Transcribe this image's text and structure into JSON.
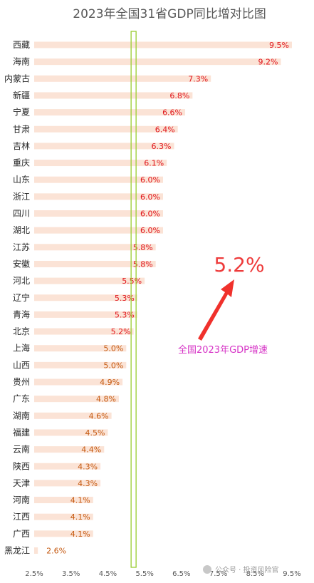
{
  "chart_data": {
    "type": "bar",
    "orientation": "horizontal",
    "title": "2023年全国31省GDP同比增对比图",
    "categories": [
      "西藏",
      "海南",
      "内蒙古",
      "新疆",
      "宁夏",
      "甘肃",
      "吉林",
      "重庆",
      "山东",
      "浙江",
      "四川",
      "湖北",
      "江苏",
      "安徽",
      "河北",
      "辽宁",
      "青海",
      "北京",
      "上海",
      "山西",
      "贵州",
      "广东",
      "湖南",
      "福建",
      "云南",
      "陕西",
      "天津",
      "河南",
      "江西",
      "广西",
      "黑龙江"
    ],
    "values": [
      9.5,
      9.2,
      7.3,
      6.8,
      6.6,
      6.4,
      6.3,
      6.1,
      6.0,
      6.0,
      6.0,
      6.0,
      5.8,
      5.8,
      5.5,
      5.3,
      5.3,
      5.2,
      5.0,
      5.0,
      4.9,
      4.8,
      4.6,
      4.5,
      4.4,
      4.3,
      4.3,
      4.1,
      4.1,
      4.1,
      2.6
    ],
    "data_labels": [
      "9.5%",
      "9.2%",
      "7.3%",
      "6.8%",
      "6.6%",
      "6.4%",
      "6.3%",
      "6.1%",
      "6.0%",
      "6.0%",
      "6.0%",
      "6.0%",
      "5.8%",
      "5.8%",
      "5.5%",
      "5.3%",
      "5.3%",
      "5.2%",
      "5.0%",
      "5.0%",
      "4.9%",
      "4.8%",
      "4.6%",
      "4.5%",
      "4.4%",
      "4.3%",
      "4.3%",
      "4.1%",
      "4.1%",
      "4.1%",
      "2.6%"
    ],
    "xlim": [
      2.5,
      9.5
    ],
    "x_ticks": [
      2.5,
      3.5,
      4.5,
      5.5,
      6.5,
      7.5,
      8.5,
      9.5
    ],
    "x_tick_labels": [
      "2.5%",
      "3.5%",
      "4.5%",
      "5.5%",
      "6.5%",
      "7.5%",
      "8.5%",
      "9.5%"
    ],
    "reference_line": 5.2,
    "grid": false,
    "annotation": {
      "value_label": "5.2%",
      "text": "全国2023年GDP增速"
    },
    "watermark": "公众号 · 投资风险官"
  },
  "colors": {
    "bar": "#fbe3d6",
    "label_above": "#e0161c",
    "label_below": "#c55a11",
    "reference_line": "#9acd32",
    "annotation_value": "#ee3b3b",
    "annotation_text": "#d633c6",
    "arrow": "#f0312c"
  }
}
